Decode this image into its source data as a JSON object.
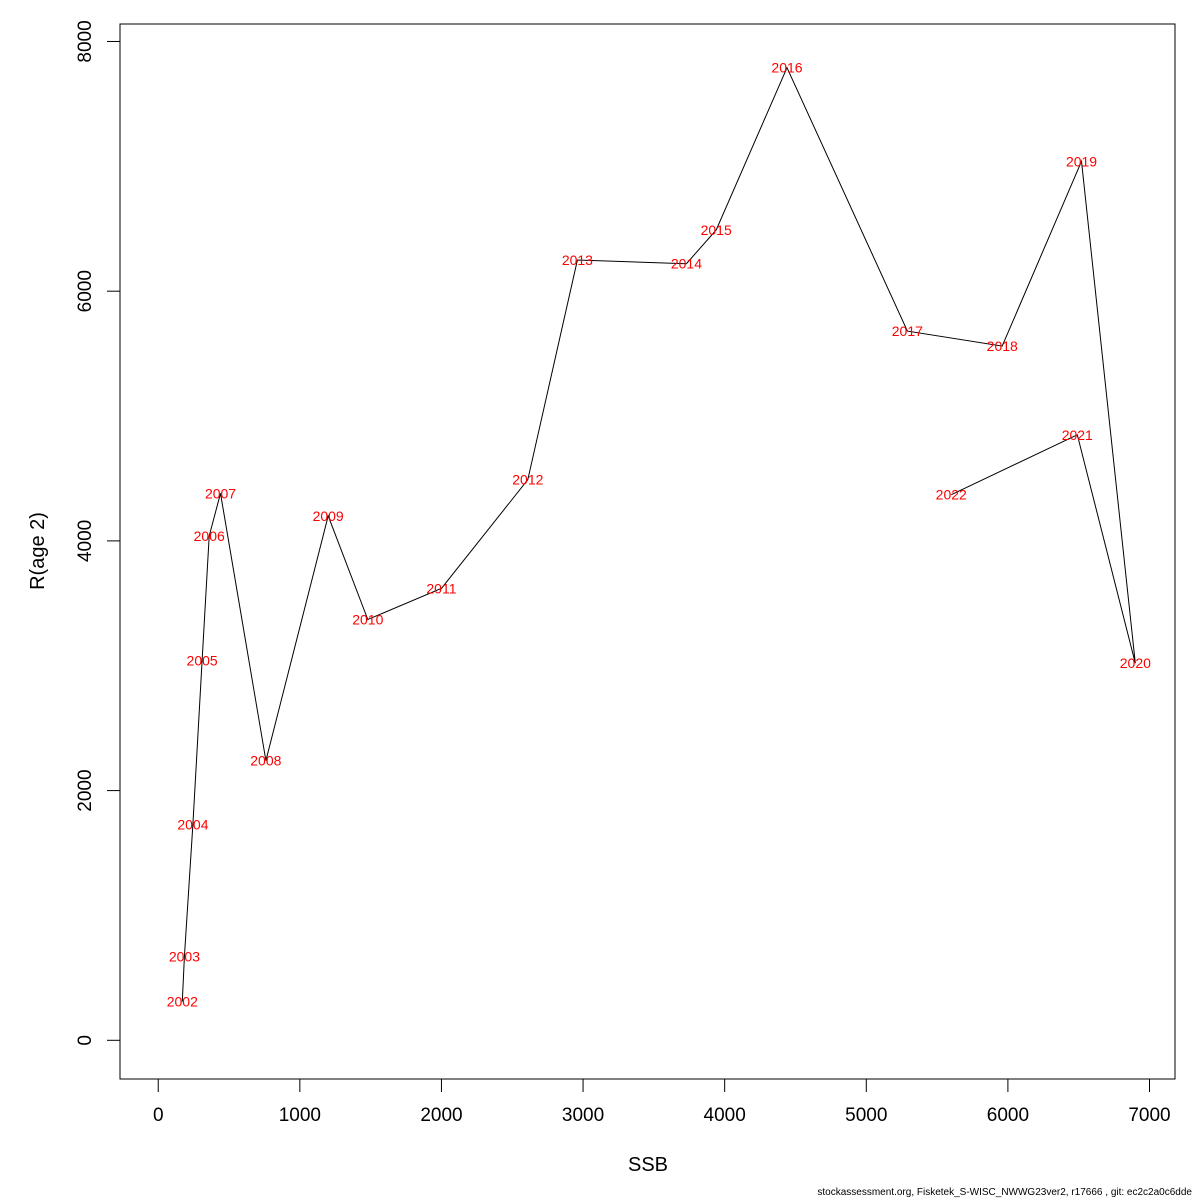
{
  "chart_data": {
    "type": "line",
    "title": "",
    "xlabel": "SSB",
    "ylabel": "R(age 2)",
    "xlim": [
      -270,
      7180
    ],
    "ylim": [
      -310,
      8140
    ],
    "x_ticks": [
      0,
      1000,
      2000,
      3000,
      4000,
      5000,
      6000,
      7000
    ],
    "y_ticks": [
      0,
      2000,
      4000,
      6000,
      8000
    ],
    "grid": false,
    "line_color": "#000000",
    "label_color": "#ff0000",
    "points": [
      {
        "label": "2002",
        "x": 170,
        "y": 310
      },
      {
        "label": "2003",
        "x": 185,
        "y": 670
      },
      {
        "label": "2004",
        "x": 245,
        "y": 1730
      },
      {
        "label": "2005",
        "x": 310,
        "y": 3040
      },
      {
        "label": "2006",
        "x": 360,
        "y": 4040
      },
      {
        "label": "2007",
        "x": 440,
        "y": 4380
      },
      {
        "label": "2008",
        "x": 760,
        "y": 2240
      },
      {
        "label": "2009",
        "x": 1200,
        "y": 4200
      },
      {
        "label": "2010",
        "x": 1480,
        "y": 3370
      },
      {
        "label": "2011",
        "x": 2000,
        "y": 3620
      },
      {
        "label": "2012",
        "x": 2610,
        "y": 4490
      },
      {
        "label": "2013",
        "x": 2960,
        "y": 6250
      },
      {
        "label": "2014",
        "x": 3730,
        "y": 6220
      },
      {
        "label": "2015",
        "x": 3940,
        "y": 6490
      },
      {
        "label": "2016",
        "x": 4440,
        "y": 7790
      },
      {
        "label": "2017",
        "x": 5290,
        "y": 5680
      },
      {
        "label": "2018",
        "x": 5960,
        "y": 5560
      },
      {
        "label": "2019",
        "x": 6520,
        "y": 7040
      },
      {
        "label": "2020",
        "x": 6900,
        "y": 3020
      },
      {
        "label": "2021",
        "x": 6490,
        "y": 4850
      },
      {
        "label": "2022",
        "x": 5600,
        "y": 4370
      }
    ]
  },
  "footer": {
    "text": "stockassessment.org, Fisketek_S-WISC_NWWG23ver2, r17666 , git: ec2c2a0c6dde"
  }
}
